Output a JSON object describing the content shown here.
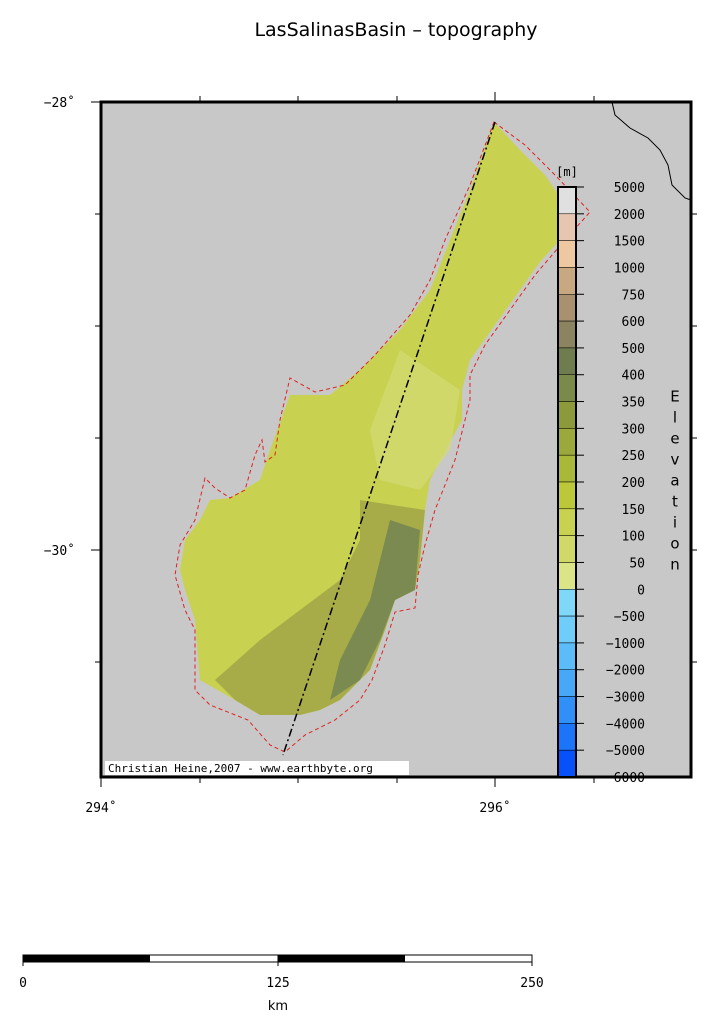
{
  "map": {
    "title": "LasSalinasBasin – topography",
    "axes": {
      "lat_labels": [
        "−28˚",
        "−30˚"
      ],
      "lon_labels": [
        "294˚",
        "296˚"
      ]
    },
    "credit": "Christian Heine,2007 - www.earthbyte.org",
    "colorbar": {
      "unit": "[m]",
      "label": "Elevation",
      "labels": [
        "5000",
        "2000",
        "1500",
        "1000",
        "750",
        "600",
        "500",
        "400",
        "350",
        "300",
        "250",
        "200",
        "150",
        "100",
        "50",
        "0",
        "−500",
        "−1000",
        "−2000",
        "−3000",
        "−4000",
        "−5000",
        "−6000"
      ]
    },
    "scale_bar": {
      "labels": [
        "0",
        "125",
        "250"
      ],
      "unit": "km"
    }
  }
}
